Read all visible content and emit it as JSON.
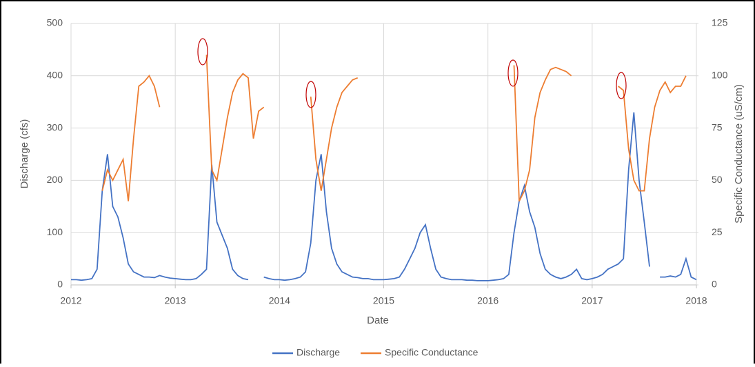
{
  "chart_data": {
    "type": "line",
    "xlabel": "Date",
    "ylabel": "Discharge (cfs)",
    "y2label": "Specific Conductance (uS/cm)",
    "x": [
      2012,
      2012.05,
      2012.1,
      2012.15,
      2012.2,
      2012.25,
      2012.3,
      2012.35,
      2012.4,
      2012.45,
      2012.5,
      2012.55,
      2012.6,
      2012.65,
      2012.7,
      2012.75,
      2012.8,
      2012.85,
      2012.9,
      2012.95,
      2013,
      2013.05,
      2013.1,
      2013.15,
      2013.2,
      2013.25,
      2013.3,
      2013.35,
      2013.4,
      2013.45,
      2013.5,
      2013.55,
      2013.6,
      2013.65,
      2013.7,
      2013.75,
      2013.8,
      2013.85,
      2013.9,
      2013.95,
      2014,
      2014.05,
      2014.1,
      2014.15,
      2014.2,
      2014.25,
      2014.3,
      2014.35,
      2014.4,
      2014.45,
      2014.5,
      2014.55,
      2014.6,
      2014.65,
      2014.7,
      2014.75,
      2014.8,
      2014.85,
      2014.9,
      2014.95,
      2015,
      2015.05,
      2015.1,
      2015.15,
      2015.2,
      2015.25,
      2015.3,
      2015.35,
      2015.4,
      2015.45,
      2015.5,
      2015.55,
      2015.6,
      2015.65,
      2015.7,
      2015.75,
      2015.8,
      2015.85,
      2015.9,
      2015.95,
      2016,
      2016.05,
      2016.1,
      2016.15,
      2016.2,
      2016.25,
      2016.3,
      2016.35,
      2016.4,
      2016.45,
      2016.5,
      2016.55,
      2016.6,
      2016.65,
      2016.7,
      2016.75,
      2016.8,
      2016.85,
      2016.9,
      2016.95,
      2017,
      2017.05,
      2017.1,
      2017.15,
      2017.2,
      2017.25,
      2017.3,
      2017.35,
      2017.4,
      2017.45,
      2017.5,
      2017.55,
      2017.6,
      2017.65,
      2017.7,
      2017.75,
      2017.8,
      2017.85,
      2017.9,
      2017.95,
      2018
    ],
    "series": [
      {
        "name": "Discharge",
        "color": "#4472c4",
        "axis": "y",
        "values": [
          10,
          10,
          9,
          10,
          12,
          30,
          180,
          250,
          150,
          130,
          90,
          40,
          25,
          20,
          15,
          15,
          14,
          18,
          15,
          13,
          12,
          11,
          10,
          10,
          12,
          20,
          30,
          230,
          120,
          95,
          70,
          30,
          18,
          12,
          10,
          null,
          null,
          15,
          12,
          10,
          10,
          9,
          10,
          12,
          15,
          25,
          80,
          200,
          250,
          140,
          70,
          40,
          25,
          20,
          15,
          14,
          12,
          12,
          10,
          10,
          10,
          11,
          12,
          15,
          30,
          50,
          70,
          100,
          115,
          70,
          30,
          15,
          12,
          10,
          10,
          10,
          9,
          9,
          8,
          8,
          8,
          9,
          10,
          12,
          20,
          100,
          160,
          190,
          140,
          110,
          60,
          30,
          20,
          15,
          12,
          15,
          20,
          30,
          12,
          10,
          12,
          15,
          20,
          30,
          35,
          40,
          50,
          220,
          330,
          200,
          120,
          35,
          null,
          15,
          15,
          17,
          15,
          20,
          50,
          15,
          10
        ]
      },
      {
        "name": "Specific Conductance",
        "color": "#ed7d31",
        "axis": "y2",
        "values": [
          null,
          null,
          null,
          null,
          null,
          null,
          45,
          55,
          50,
          55,
          60,
          40,
          70,
          95,
          97,
          100,
          95,
          85,
          null,
          null,
          null,
          null,
          null,
          null,
          null,
          null,
          110,
          55,
          50,
          65,
          80,
          92,
          98,
          101,
          99,
          70,
          83,
          85,
          null,
          null,
          null,
          null,
          null,
          null,
          null,
          null,
          90,
          60,
          45,
          60,
          75,
          85,
          92,
          95,
          98,
          99,
          null,
          null,
          null,
          null,
          null,
          null,
          null,
          null,
          null,
          null,
          null,
          null,
          null,
          null,
          null,
          null,
          null,
          null,
          null,
          null,
          null,
          null,
          null,
          null,
          null,
          null,
          null,
          null,
          null,
          105,
          40,
          45,
          55,
          80,
          92,
          98,
          103,
          104,
          103,
          102,
          100,
          null,
          null,
          null,
          null,
          null,
          null,
          null,
          null,
          95,
          93,
          65,
          50,
          45,
          45,
          70,
          85,
          93,
          97,
          92,
          95,
          95,
          100,
          null,
          null
        ]
      }
    ],
    "xlim": [
      2012,
      2018
    ],
    "xticks": [
      2012,
      2013,
      2014,
      2015,
      2016,
      2017,
      2018
    ],
    "ylim": [
      0,
      500
    ],
    "yticks": [
      0,
      100,
      200,
      300,
      400,
      500
    ],
    "y2lim": [
      0,
      125
    ],
    "y2ticks": [
      0,
      25,
      50,
      75,
      100,
      125
    ],
    "grid": true,
    "legend": "bottom"
  }
}
